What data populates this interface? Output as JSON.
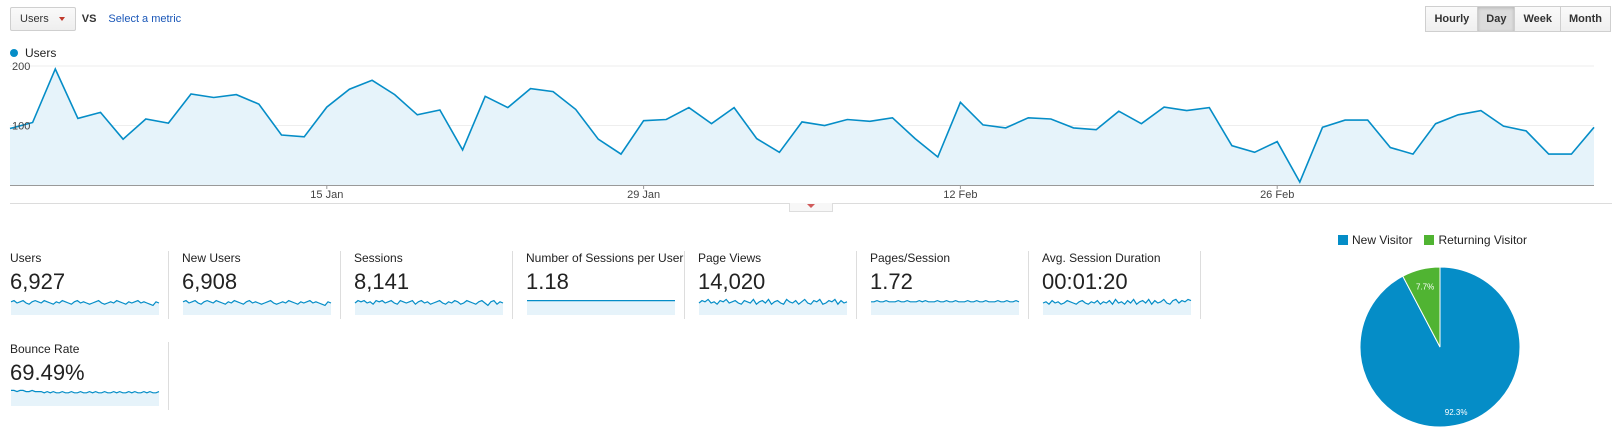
{
  "toolbar": {
    "metric_label": "Users",
    "vs_label": "VS",
    "select_metric_label": "Select a metric",
    "granularity": [
      "Hourly",
      "Day",
      "Week",
      "Month"
    ],
    "granularity_active": "Day"
  },
  "colors": {
    "line": "#058dc7",
    "fill": "#e6f3fa",
    "new_visitor": "#058dc7",
    "returning_visitor": "#50b432"
  },
  "chart_data": [
    {
      "type": "area",
      "series": [
        {
          "name": "Users",
          "values": [
            95,
            105,
            195,
            112,
            122,
            77,
            111,
            104,
            153,
            147,
            152,
            136,
            84,
            81,
            131,
            161,
            176,
            152,
            118,
            126,
            59,
            149,
            130,
            162,
            157,
            127,
            77,
            52,
            108,
            110,
            130,
            103,
            130,
            78,
            55,
            106,
            100,
            110,
            107,
            113,
            78,
            47,
            139,
            101,
            96,
            113,
            111,
            96,
            93,
            124,
            103,
            131,
            125,
            130,
            66,
            55,
            73,
            5,
            97,
            109,
            109,
            63,
            52,
            103,
            118,
            125,
            99,
            91,
            52,
            52,
            97
          ]
        }
      ],
      "x_ticks": [
        "15 Jan",
        "29 Jan",
        "12 Feb",
        "26 Feb"
      ],
      "y_ticks": [
        "100",
        "200"
      ],
      "ylim": [
        0,
        200
      ],
      "grid": true,
      "legend": "top-left"
    },
    {
      "type": "pie",
      "categories": [
        "New Visitor",
        "Returning Visitor"
      ],
      "values": [
        92.3,
        7.7
      ],
      "data_labels": [
        "92.3%",
        "7.7%"
      ],
      "legend": "top"
    }
  ],
  "scorecards": [
    {
      "label": "Users",
      "value": "6,927",
      "spark": [
        11,
        12,
        10,
        11,
        12,
        10,
        9,
        11,
        12,
        11,
        10,
        12,
        11,
        10,
        9,
        11,
        10,
        12,
        11,
        10,
        9,
        11,
        12,
        10,
        11,
        10,
        9,
        10,
        11,
        12,
        10,
        9,
        10,
        11,
        10,
        12,
        11,
        10,
        9,
        11,
        10,
        11,
        12,
        10,
        11,
        10,
        9,
        8,
        11,
        10
      ]
    },
    {
      "label": "New Users",
      "value": "6,908",
      "spark": [
        11,
        12,
        10,
        11,
        12,
        10,
        9,
        11,
        12,
        11,
        10,
        12,
        11,
        10,
        9,
        11,
        10,
        12,
        11,
        10,
        9,
        11,
        12,
        10,
        11,
        10,
        9,
        10,
        11,
        12,
        10,
        9,
        10,
        11,
        10,
        12,
        11,
        10,
        9,
        11,
        10,
        11,
        12,
        10,
        11,
        10,
        9,
        8,
        11,
        10
      ]
    },
    {
      "label": "Sessions",
      "value": "8,141",
      "spark": [
        10,
        12,
        11,
        12,
        10,
        11,
        9,
        12,
        11,
        12,
        10,
        11,
        12,
        10,
        9,
        12,
        11,
        10,
        11,
        12,
        9,
        11,
        12,
        10,
        11,
        9,
        10,
        11,
        12,
        10,
        9,
        11,
        10,
        12,
        11,
        9,
        10,
        12,
        11,
        10,
        9,
        11,
        12,
        10,
        8,
        11,
        12,
        9,
        11,
        10
      ]
    },
    {
      "label": "Number of Sessions per User",
      "value": "1.18",
      "spark": [
        12,
        12,
        12,
        12,
        12,
        12,
        12,
        12,
        12,
        12,
        12,
        12,
        12,
        12,
        12,
        12,
        12,
        12,
        12,
        12,
        12,
        12,
        12,
        12,
        12,
        12,
        12,
        12,
        12,
        12,
        12,
        12,
        12,
        12,
        12,
        12,
        12,
        12,
        12,
        12,
        12,
        12,
        12,
        12,
        12,
        12,
        12,
        12,
        12,
        12
      ]
    },
    {
      "label": "Page Views",
      "value": "14,020",
      "spark": [
        10,
        12,
        11,
        13,
        10,
        11,
        9,
        12,
        11,
        13,
        10,
        11,
        12,
        10,
        9,
        12,
        11,
        10,
        13,
        9,
        11,
        12,
        10,
        13,
        9,
        11,
        12,
        10,
        9,
        13,
        11,
        10,
        12,
        9,
        11,
        13,
        10,
        9,
        12,
        11,
        13,
        9,
        10,
        12,
        11,
        13,
        9,
        12,
        10,
        11
      ]
    },
    {
      "label": "Pages/Session",
      "value": "1.72",
      "spark": [
        11,
        11,
        12,
        11,
        11,
        12,
        11,
        11,
        11,
        12,
        11,
        11,
        12,
        11,
        11,
        11,
        12,
        11,
        12,
        11,
        11,
        11,
        12,
        11,
        11,
        12,
        11,
        11,
        12,
        11,
        11,
        11,
        12,
        11,
        11,
        12,
        11,
        11,
        12,
        11,
        11,
        11,
        12,
        11,
        11,
        12,
        11,
        11,
        12,
        11
      ]
    },
    {
      "label": "Avg. Session Duration",
      "value": "00:01:20",
      "spark": [
        10,
        11,
        9,
        12,
        10,
        11,
        9,
        10,
        12,
        11,
        10,
        9,
        11,
        12,
        10,
        9,
        11,
        10,
        12,
        9,
        11,
        10,
        12,
        9,
        13,
        10,
        11,
        9,
        12,
        10,
        13,
        9,
        11,
        12,
        10,
        13,
        9,
        12,
        10,
        11,
        13,
        10,
        9,
        12,
        13,
        10,
        12,
        11,
        13,
        12
      ]
    },
    {
      "label": "Bounce Rate",
      "value": "69.49%",
      "spark": [
        13,
        13,
        12,
        13,
        13,
        12,
        12,
        13,
        12,
        12,
        12,
        11,
        12,
        11,
        12,
        11,
        11,
        12,
        11,
        11,
        12,
        11,
        11,
        12,
        11,
        11,
        12,
        11,
        12,
        11,
        11,
        12,
        11,
        11,
        12,
        11,
        12,
        11,
        11,
        12,
        11,
        12,
        11,
        11,
        12,
        11,
        12,
        11,
        11,
        12
      ]
    }
  ]
}
